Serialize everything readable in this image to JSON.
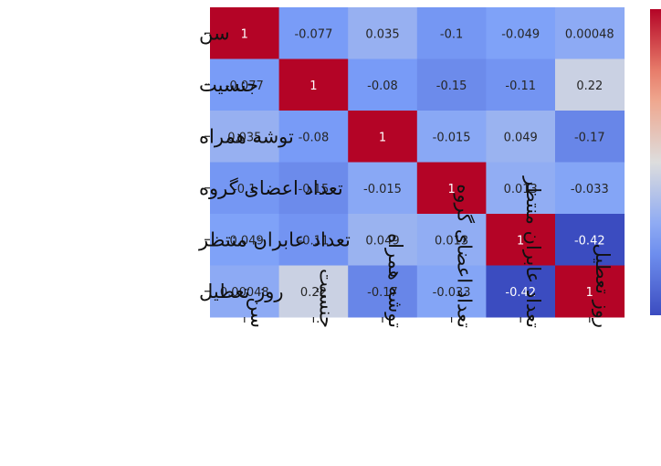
{
  "chart_data": {
    "type": "heatmap",
    "row_labels": [
      "سن",
      "جنسیت",
      "توشه همراه",
      "تعداد اعضای گروه",
      "تعداد عابران منتظر",
      "روز تعطیل"
    ],
    "col_labels": [
      "سن",
      "جنسیت",
      "توشه همراه",
      "تعداد اعضای گروه",
      "تعداد عابران منتظر",
      "روز تعطیل"
    ],
    "values": [
      [
        1,
        -0.077,
        0.035,
        -0.1,
        -0.049,
        0.00048
      ],
      [
        -0.077,
        1,
        -0.08,
        -0.15,
        -0.11,
        0.22
      ],
      [
        0.035,
        -0.08,
        1,
        -0.015,
        0.049,
        -0.17
      ],
      [
        -0.1,
        -0.15,
        -0.015,
        1,
        0.013,
        -0.033
      ],
      [
        -0.049,
        -0.11,
        0.049,
        0.013,
        1,
        -0.42
      ],
      [
        0.00048,
        0.22,
        -0.17,
        -0.033,
        -0.42,
        1
      ]
    ],
    "cell_text": [
      [
        "1",
        "-0.077",
        "0.035",
        "-0.1",
        "-0.049",
        "0.00048"
      ],
      [
        "-0.077",
        "1",
        "-0.08",
        "-0.15",
        "-0.11",
        "0.22"
      ],
      [
        "0.035",
        "-0.08",
        "1",
        "-0.015",
        "0.049",
        "-0.17"
      ],
      [
        "-0.1",
        "-0.15",
        "-0.015",
        "1",
        "0.013",
        "-0.033"
      ],
      [
        "-0.049",
        "-0.11",
        "0.049",
        "0.013",
        "1",
        "-0.42"
      ],
      [
        "0.00048",
        "0.22",
        "-0.17",
        "-0.033",
        "-0.42",
        "1"
      ]
    ],
    "colormap": "coolwarm",
    "vmin": -0.42,
    "vmax": 1,
    "colorbar": "right",
    "colors": {
      "low": "#3b4cc0",
      "mid": "#dddddd",
      "high": "#b40426"
    }
  }
}
